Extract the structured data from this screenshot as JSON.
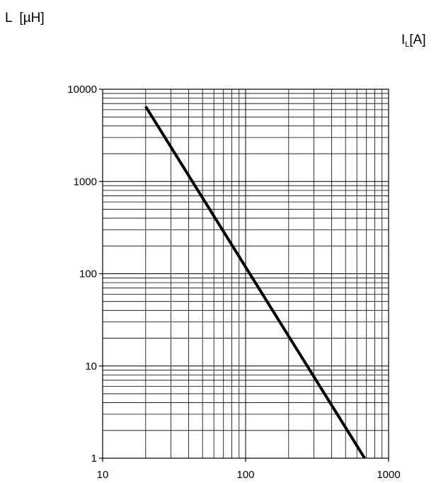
{
  "chart_data": {
    "type": "line",
    "xlabel": "",
    "ylabel": "L  [µH]",
    "corner_label": {
      "main": "I",
      "sub": "L",
      "unit": "[A]"
    },
    "x_scale": "log",
    "y_scale": "log",
    "xlim": [
      10,
      1000
    ],
    "ylim": [
      1,
      10000
    ],
    "x_ticks": [
      "10",
      "100",
      "1000"
    ],
    "y_ticks": [
      "10000",
      "1000",
      "100",
      "10",
      "1"
    ],
    "grid": true,
    "legend": "none",
    "colors": {
      "line": "#000000",
      "grid": "#000000",
      "background": "#ffffff"
    },
    "series": [
      {
        "x": [
          20,
          680
        ],
        "y": [
          6500,
          1
        ]
      }
    ]
  }
}
